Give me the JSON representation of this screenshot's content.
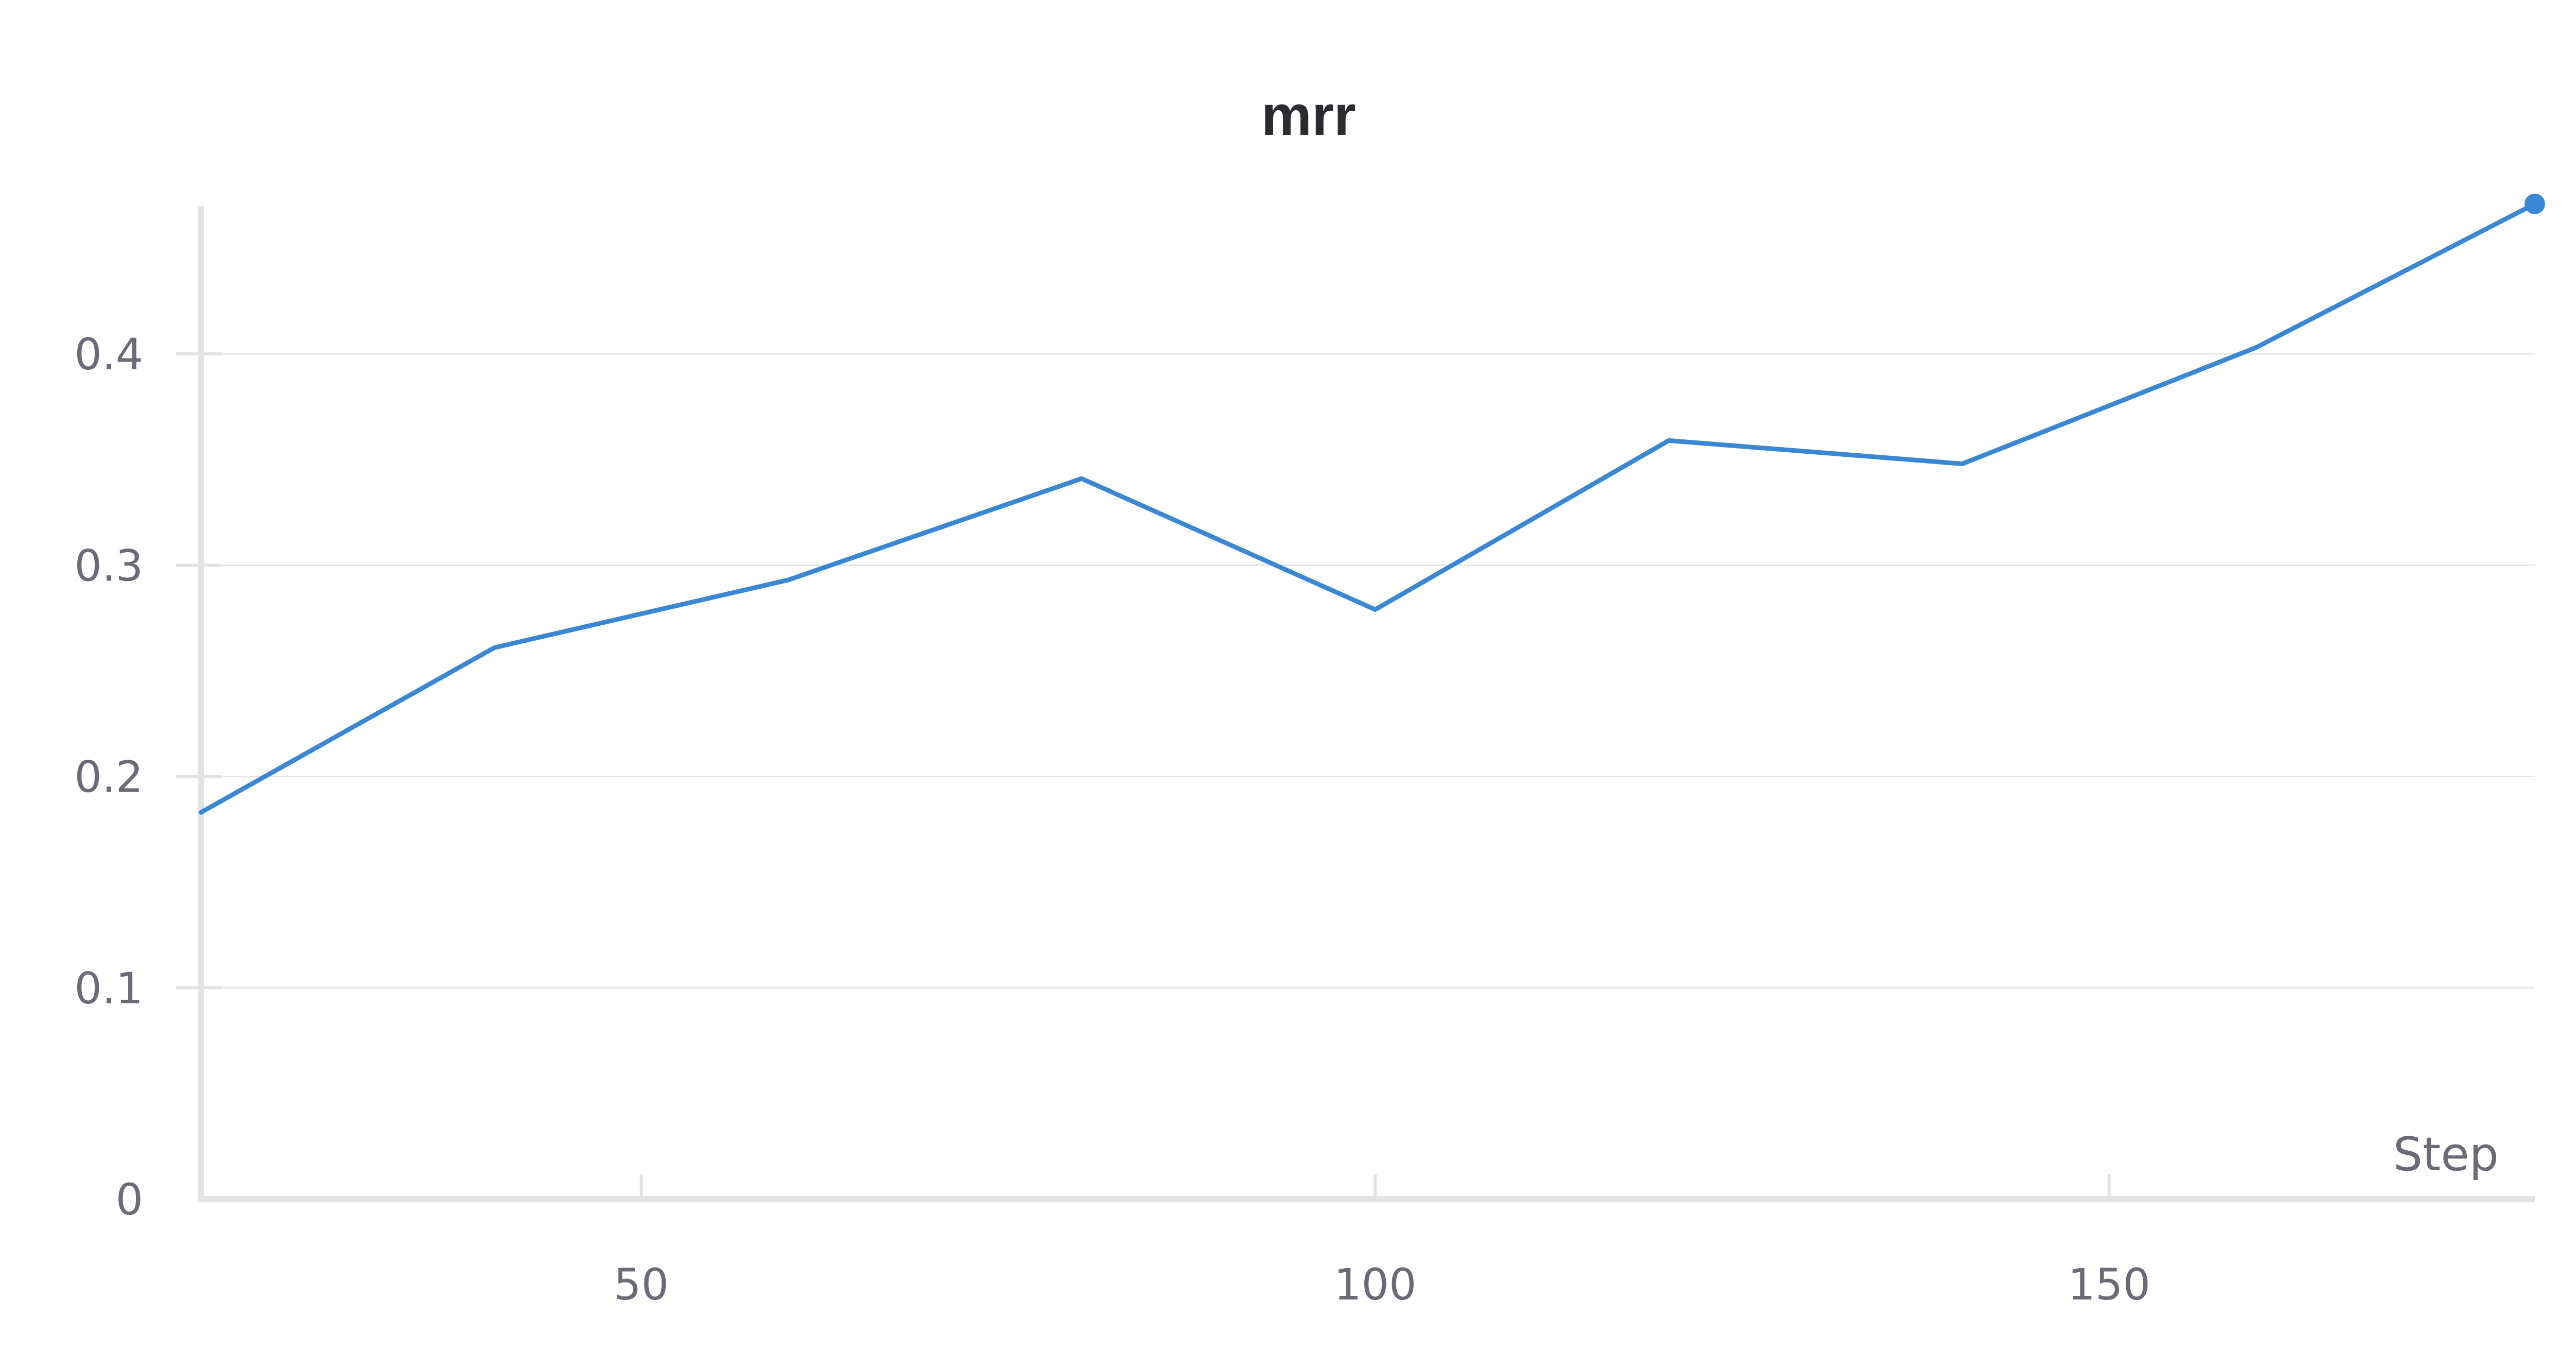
{
  "chart_data": {
    "type": "line",
    "title": "mrr",
    "xlabel": "Step",
    "ylabel": "",
    "xlim": [
      20,
      179
    ],
    "ylim": [
      0,
      0.47
    ],
    "xticks": [
      50,
      100,
      150
    ],
    "yticks": [
      0,
      0.1,
      0.2,
      0.3,
      0.4
    ],
    "xtick_labels": [
      "50",
      "100",
      "150"
    ],
    "ytick_labels": [
      "0",
      "0.1",
      "0.2",
      "0.3",
      "0.4"
    ],
    "grid": true,
    "legend": "none",
    "series": [
      {
        "color": "#3a88d3",
        "x": [
          20,
          40,
          60,
          80,
          100,
          120,
          140,
          160,
          179
        ],
        "y": [
          0.183,
          0.261,
          0.293,
          0.341,
          0.279,
          0.359,
          0.348,
          0.403,
          0.471
        ]
      }
    ]
  }
}
